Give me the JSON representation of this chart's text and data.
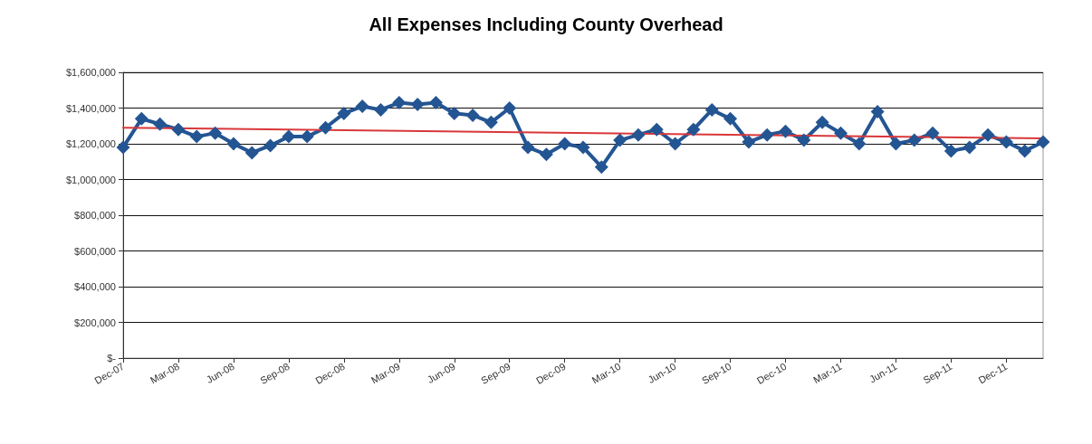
{
  "chart_data": {
    "type": "line",
    "title": "All Expenses Including County Overhead",
    "categories": [
      "Dec-07",
      null,
      null,
      "Mar-08",
      null,
      null,
      "Jun-08",
      null,
      null,
      "Sep-08",
      null,
      null,
      "Dec-08",
      null,
      null,
      "Mar-09",
      null,
      null,
      "Jun-09",
      null,
      null,
      "Sep-09",
      null,
      null,
      "Dec-09",
      null,
      null,
      "Mar-10",
      null,
      null,
      "Jun-10",
      null,
      null,
      "Sep-10",
      null,
      null,
      "Dec-10",
      null,
      null,
      "Mar-11",
      null,
      null,
      "Jun-11",
      null,
      null,
      "Sep-11",
      null,
      null,
      "Dec-11",
      null,
      null
    ],
    "series": [
      {
        "color": "#245593",
        "marker": "diamond",
        "values": [
          1180000,
          1340000,
          1310000,
          1280000,
          1240000,
          1260000,
          1200000,
          1150000,
          1190000,
          1240000,
          1240000,
          1290000,
          1370000,
          1410000,
          1390000,
          1430000,
          1420000,
          1430000,
          1370000,
          1360000,
          1320000,
          1400000,
          1180000,
          1140000,
          1200000,
          1180000,
          1070000,
          1220000,
          1250000,
          1280000,
          1200000,
          1280000,
          1390000,
          1340000,
          1210000,
          1250000,
          1270000,
          1220000,
          1320000,
          1260000,
          1200000,
          1380000,
          1200000,
          1220000,
          1260000,
          1160000,
          1180000,
          1250000,
          1210000,
          1160000,
          1210000
        ]
      },
      {
        "color": "#d9383a",
        "marker": "none",
        "values": [
          1290000,
          null,
          null,
          null,
          null,
          null,
          null,
          null,
          null,
          null,
          null,
          null,
          null,
          null,
          null,
          null,
          null,
          null,
          null,
          null,
          null,
          null,
          null,
          null,
          null,
          null,
          null,
          null,
          null,
          null,
          null,
          null,
          null,
          null,
          null,
          null,
          null,
          null,
          null,
          null,
          null,
          null,
          null,
          null,
          null,
          null,
          null,
          null,
          null,
          null,
          1230000
        ]
      }
    ],
    "ylim": [
      0,
      1600000
    ],
    "yticks": [
      {
        "value": 0,
        "label": "$-"
      },
      {
        "value": 200000,
        "label": "$200,000"
      },
      {
        "value": 400000,
        "label": "$400,000"
      },
      {
        "value": 600000,
        "label": "$600,000"
      },
      {
        "value": 800000,
        "label": "$800,000"
      },
      {
        "value": 1000000,
        "label": "$1,000,000"
      },
      {
        "value": 1200000,
        "label": "$1,200,000"
      },
      {
        "value": 1400000,
        "label": "$1,400,000"
      },
      {
        "value": 1600000,
        "label": "$1,600,000"
      }
    ],
    "grid": "y",
    "line_style": "solid"
  }
}
